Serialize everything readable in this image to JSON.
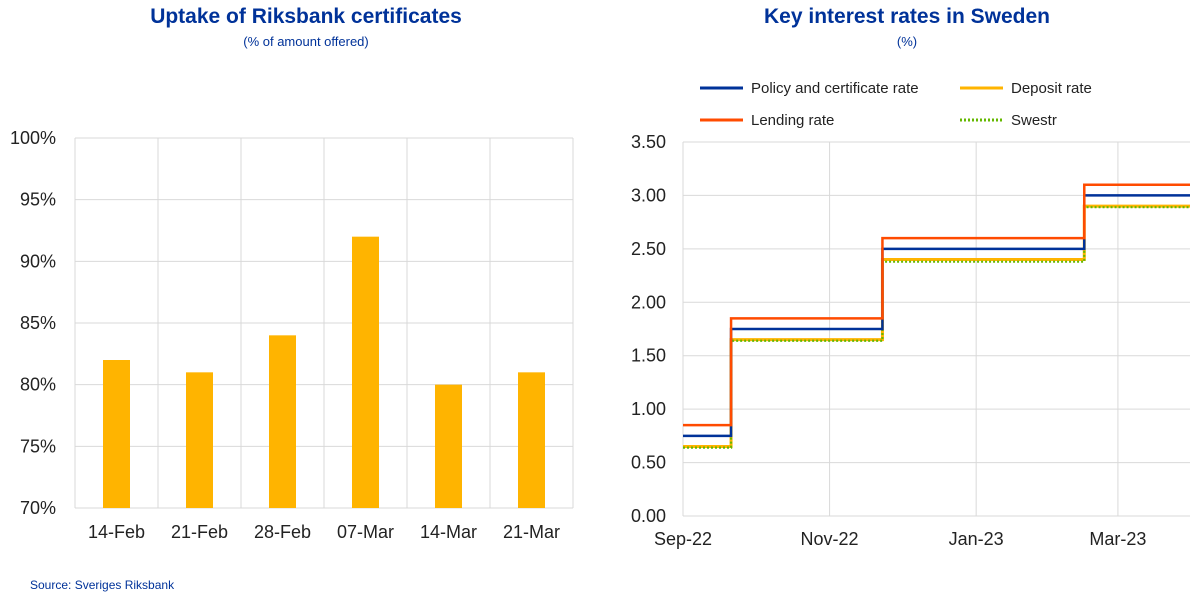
{
  "left_title": "Uptake of Riksbank certificates",
  "left_subtitle": "(% of amount offered)",
  "right_title": "Key interest rates in Sweden",
  "right_subtitle": "(%)",
  "source": "Source: Sveriges Riksbank",
  "colors": {
    "title": "#003299",
    "bar": "#FFB400",
    "policy": "#003299",
    "deposit": "#FFB400",
    "lending": "#FF4B00",
    "swestr": "#65B800",
    "grid": "#D9D9D9"
  },
  "chart_data": [
    {
      "type": "bar",
      "title": "Uptake of Riksbank certificates",
      "subtitle": "(% of amount offered)",
      "categories": [
        "14-Feb",
        "21-Feb",
        "28-Feb",
        "07-Mar",
        "14-Mar",
        "21-Mar"
      ],
      "values": [
        82,
        81,
        84,
        92,
        80,
        81
      ],
      "ylim": [
        70,
        100
      ],
      "yticks": [
        "70%",
        "75%",
        "80%",
        "85%",
        "90%",
        "95%",
        "100%"
      ],
      "grid": true
    },
    {
      "type": "line",
      "title": "Key interest rates in Sweden",
      "subtitle": "(%)",
      "x_tick_labels": [
        "Sep-22",
        "Nov-22",
        "Jan-23",
        "Mar-23"
      ],
      "x_ticks": [
        "2022-09-01",
        "2022-11-01",
        "2023-01-01",
        "2023-03-01"
      ],
      "x_range": [
        "2022-09-01",
        "2023-03-31"
      ],
      "ylim": [
        0,
        3.5
      ],
      "yticks": [
        "0.00",
        "0.50",
        "1.00",
        "1.50",
        "2.00",
        "2.50",
        "3.00",
        "3.50"
      ],
      "grid": true,
      "legend_position": "top",
      "series": [
        {
          "name": "Policy and certificate rate",
          "x": [
            "2022-09-01",
            "2022-09-21",
            "2022-11-23",
            "2023-02-15",
            "2023-03-31"
          ],
          "values": [
            0.75,
            1.75,
            2.5,
            3.0,
            3.0
          ]
        },
        {
          "name": "Deposit rate",
          "x": [
            "2022-09-01",
            "2022-09-21",
            "2022-11-23",
            "2023-02-15",
            "2023-03-31"
          ],
          "values": [
            0.65,
            1.65,
            2.4,
            2.9,
            2.9
          ]
        },
        {
          "name": "Lending rate",
          "x": [
            "2022-09-01",
            "2022-09-21",
            "2022-11-23",
            "2023-02-15",
            "2023-03-31"
          ],
          "values": [
            0.85,
            1.85,
            2.6,
            3.1,
            3.1
          ]
        },
        {
          "name": "Swestr",
          "x": [
            "2022-09-01",
            "2022-09-21",
            "2022-11-23",
            "2023-02-15",
            "2023-03-31"
          ],
          "values": [
            0.64,
            1.64,
            2.38,
            2.89,
            2.89
          ]
        }
      ]
    }
  ]
}
